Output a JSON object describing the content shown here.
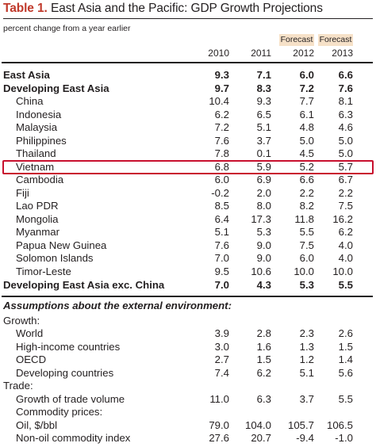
{
  "title": {
    "label": "Table 1.",
    "text": " East Asia and the Pacific: GDP Growth Projections"
  },
  "subtitle": "percent change from a year earlier",
  "header": {
    "forecast_label": "Forecast",
    "years": [
      "2010",
      "2011",
      "2012",
      "2013"
    ]
  },
  "rows": [
    {
      "name": "East Asia",
      "values": [
        "9.3",
        "7.1",
        "6.0",
        "6.6"
      ]
    },
    {
      "name": "Developing East Asia",
      "values": [
        "9.7",
        "8.3",
        "7.2",
        "7.6"
      ]
    },
    {
      "name": "China",
      "values": [
        "10.4",
        "9.3",
        "7.7",
        "8.1"
      ]
    },
    {
      "name": "Indonesia",
      "values": [
        "6.2",
        "6.5",
        "6.1",
        "6.3"
      ]
    },
    {
      "name": "Malaysia",
      "values": [
        "7.2",
        "5.1",
        "4.8",
        "4.6"
      ]
    },
    {
      "name": "Philippines",
      "values": [
        "7.6",
        "3.7",
        "5.0",
        "5.0"
      ]
    },
    {
      "name": "Thailand",
      "values": [
        "7.8",
        "0.1",
        "4.5",
        "5.0"
      ]
    },
    {
      "name": "Vietnam",
      "values": [
        "6.8",
        "5.9",
        "5.2",
        "5.7"
      ]
    },
    {
      "name": "Cambodia",
      "values": [
        "6.0",
        "6.9",
        "6.6",
        "6.7"
      ]
    },
    {
      "name": "Fiji",
      "values": [
        "-0.2",
        "2.0",
        "2.2",
        "2.2"
      ]
    },
    {
      "name": "Lao PDR",
      "values": [
        "8.5",
        "8.0",
        "8.2",
        "7.5"
      ]
    },
    {
      "name": "Mongolia",
      "values": [
        "6.4",
        "17.3",
        "11.8",
        "16.2"
      ]
    },
    {
      "name": "Myanmar",
      "values": [
        "5.1",
        "5.3",
        "5.5",
        "6.2"
      ]
    },
    {
      "name": "Papua New Guinea",
      "values": [
        "7.6",
        "9.0",
        "7.5",
        "4.0"
      ]
    },
    {
      "name": "Solomon Islands",
      "values": [
        "7.0",
        "9.0",
        "6.0",
        "4.0"
      ]
    },
    {
      "name": "Timor-Leste",
      "values": [
        "9.5",
        "10.6",
        "10.0",
        "10.0"
      ]
    },
    {
      "name": "Developing East Asia exc. China",
      "values": [
        "7.0",
        "4.3",
        "5.3",
        "5.5"
      ]
    }
  ],
  "assumptions": {
    "title": "Assumptions about the external environment:",
    "rows": [
      {
        "name": "Growth:",
        "values": [
          "",
          "",
          "",
          ""
        ]
      },
      {
        "name": "World",
        "values": [
          "3.9",
          "2.8",
          "2.3",
          "2.6"
        ]
      },
      {
        "name": "High-income countries",
        "values": [
          "3.0",
          "1.6",
          "1.3",
          "1.5"
        ]
      },
      {
        "name": "OECD",
        "values": [
          "2.7",
          "1.5",
          "1.2",
          "1.4"
        ]
      },
      {
        "name": "Developing countries",
        "values": [
          "7.4",
          "6.2",
          "5.1",
          "5.6"
        ]
      },
      {
        "name": "Trade:",
        "values": [
          "",
          "",
          "",
          ""
        ]
      },
      {
        "name": "Growth of trade volume",
        "values": [
          "11.0",
          "6.3",
          "3.7",
          "5.5"
        ]
      },
      {
        "name": "Commodity prices:",
        "values": [
          "",
          "",
          "",
          ""
        ]
      },
      {
        "name": "Oil, $/bbl",
        "values": [
          "79.0",
          "104.0",
          "105.7",
          "106.5"
        ]
      },
      {
        "name": "Non-oil commodity index",
        "values": [
          "27.6",
          "20.7",
          "-9.4",
          "-1.0"
        ]
      }
    ]
  },
  "colors": {
    "title_label": "#c0392b",
    "forecast_bg": "#f6e1c8",
    "highlight_border": "#c8102e",
    "text": "#231f20"
  }
}
